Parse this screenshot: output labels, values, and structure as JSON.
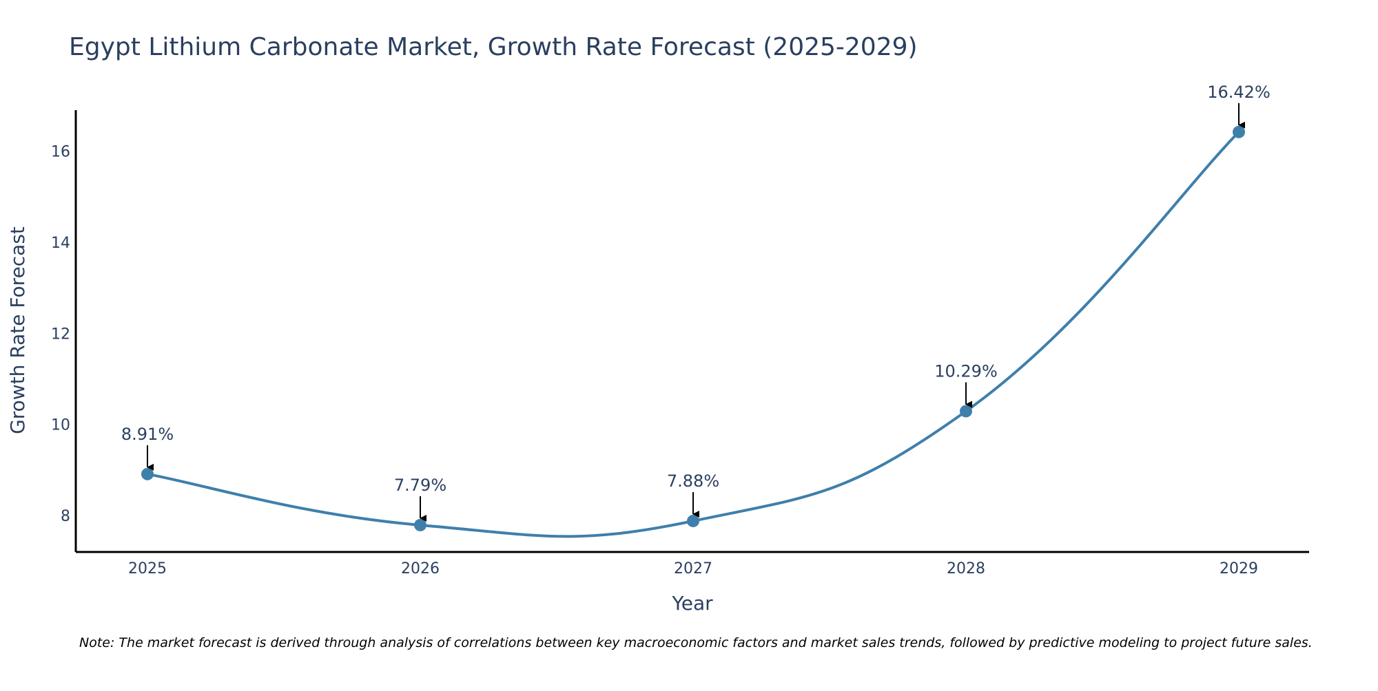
{
  "chart_data": {
    "type": "line",
    "title": "Egypt Lithium Carbonate Market, Growth Rate Forecast (2025-2029)",
    "xlabel": "Year",
    "ylabel": "Growth Rate Forecast",
    "categories": [
      "2025",
      "2026",
      "2027",
      "2028",
      "2029"
    ],
    "values": [
      8.91,
      7.79,
      7.88,
      10.29,
      16.42
    ],
    "data_labels": [
      "8.91%",
      "7.79%",
      "7.88%",
      "10.29%",
      "16.42%"
    ],
    "y_ticks": [
      "8",
      "10",
      "12",
      "14",
      "16"
    ],
    "y_tick_values": [
      8,
      10,
      12,
      14,
      16
    ],
    "ylim": [
      7.2,
      16.9
    ],
    "grid": false,
    "smooth": true,
    "line_color": "#3f7fab",
    "marker_color": "#3f7fab",
    "arrow_color": "#000000",
    "note": "Note: The market forecast is derived through analysis of correlations between key macroeconomic factors and market sales trends, followed by predictive modeling to project future sales."
  }
}
